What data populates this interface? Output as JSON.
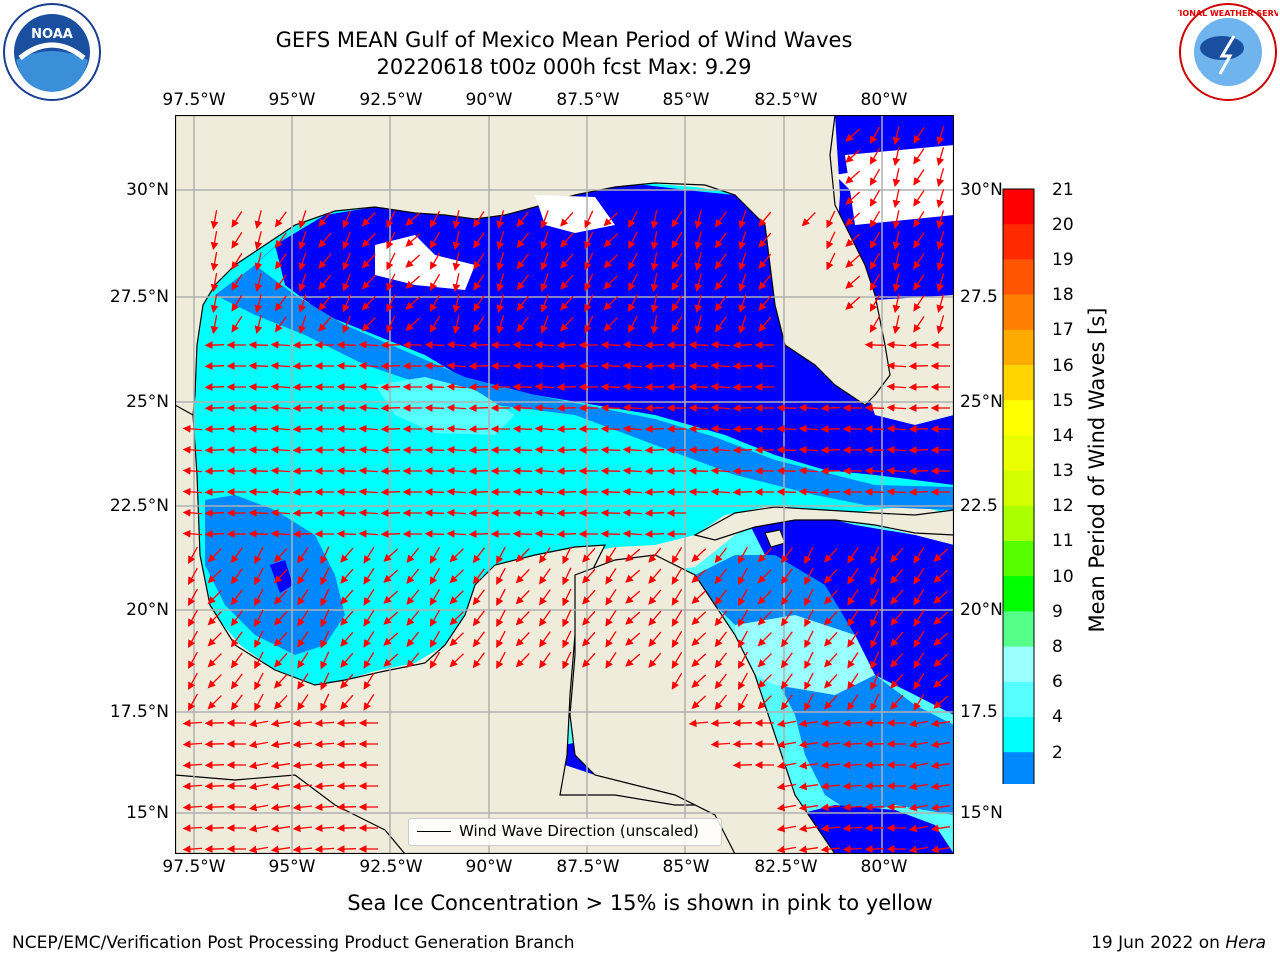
{
  "title_line1": "GEFS MEAN Gulf of Mexico Mean Period of Wind Waves",
  "title_line2": "20220618 t00z 000h fcst   Max: 9.29",
  "lon_ticks": [
    "97.5°W",
    "95°W",
    "92.5°W",
    "90°W",
    "87.5°W",
    "85°W",
    "82.5°W",
    "80°W"
  ],
  "lat_ticks_left": [
    "30°N",
    "27.5°N",
    "25°N",
    "22.5°N",
    "20°N",
    "17.5°N",
    "15°N"
  ],
  "lat_ticks_right": [
    "30°N",
    "27.5",
    "25°N",
    "22.5",
    "20°N",
    "17.5",
    "15°N"
  ],
  "colorbar": {
    "title": "Mean Period of Wind Waves [s]",
    "labels": [
      "21",
      "20",
      "19",
      "18",
      "17",
      "16",
      "15",
      "14",
      "13",
      "12",
      "11",
      "10",
      "9",
      "8",
      "6",
      "4",
      "2"
    ],
    "colors_top_to_bottom": [
      "#ff0000",
      "#ff2a00",
      "#ff5500",
      "#ff8000",
      "#ffaa00",
      "#ffd400",
      "#ffff00",
      "#eaff00",
      "#d4ff00",
      "#aaff00",
      "#55ff00",
      "#00ff00",
      "#55ff88",
      "#99ffff",
      "#55ffff",
      "#00ffff",
      "#0088ff",
      "#0000ff"
    ]
  },
  "legend_text": "Wind Wave Direction (unscaled)",
  "note": "Sea Ice Concentration > 15% is shown in pink to yellow",
  "footer_left": "NCEP/EMC/Verification Post Processing Product Generation Branch",
  "footer_right_date": "19 Jun 2022 on ",
  "footer_right_host": "Hera",
  "logos": {
    "left": "NOAA",
    "right": "NATIONAL WEATHER SERVICE"
  },
  "colors": {
    "land": "#efecdc",
    "grid": "#b0b0b0",
    "arrow": "#ff0000",
    "deep_blue": "#0000ff",
    "mid_blue": "#0088ff",
    "cyan": "#00ffff",
    "light_cyan": "#55ffff"
  }
}
